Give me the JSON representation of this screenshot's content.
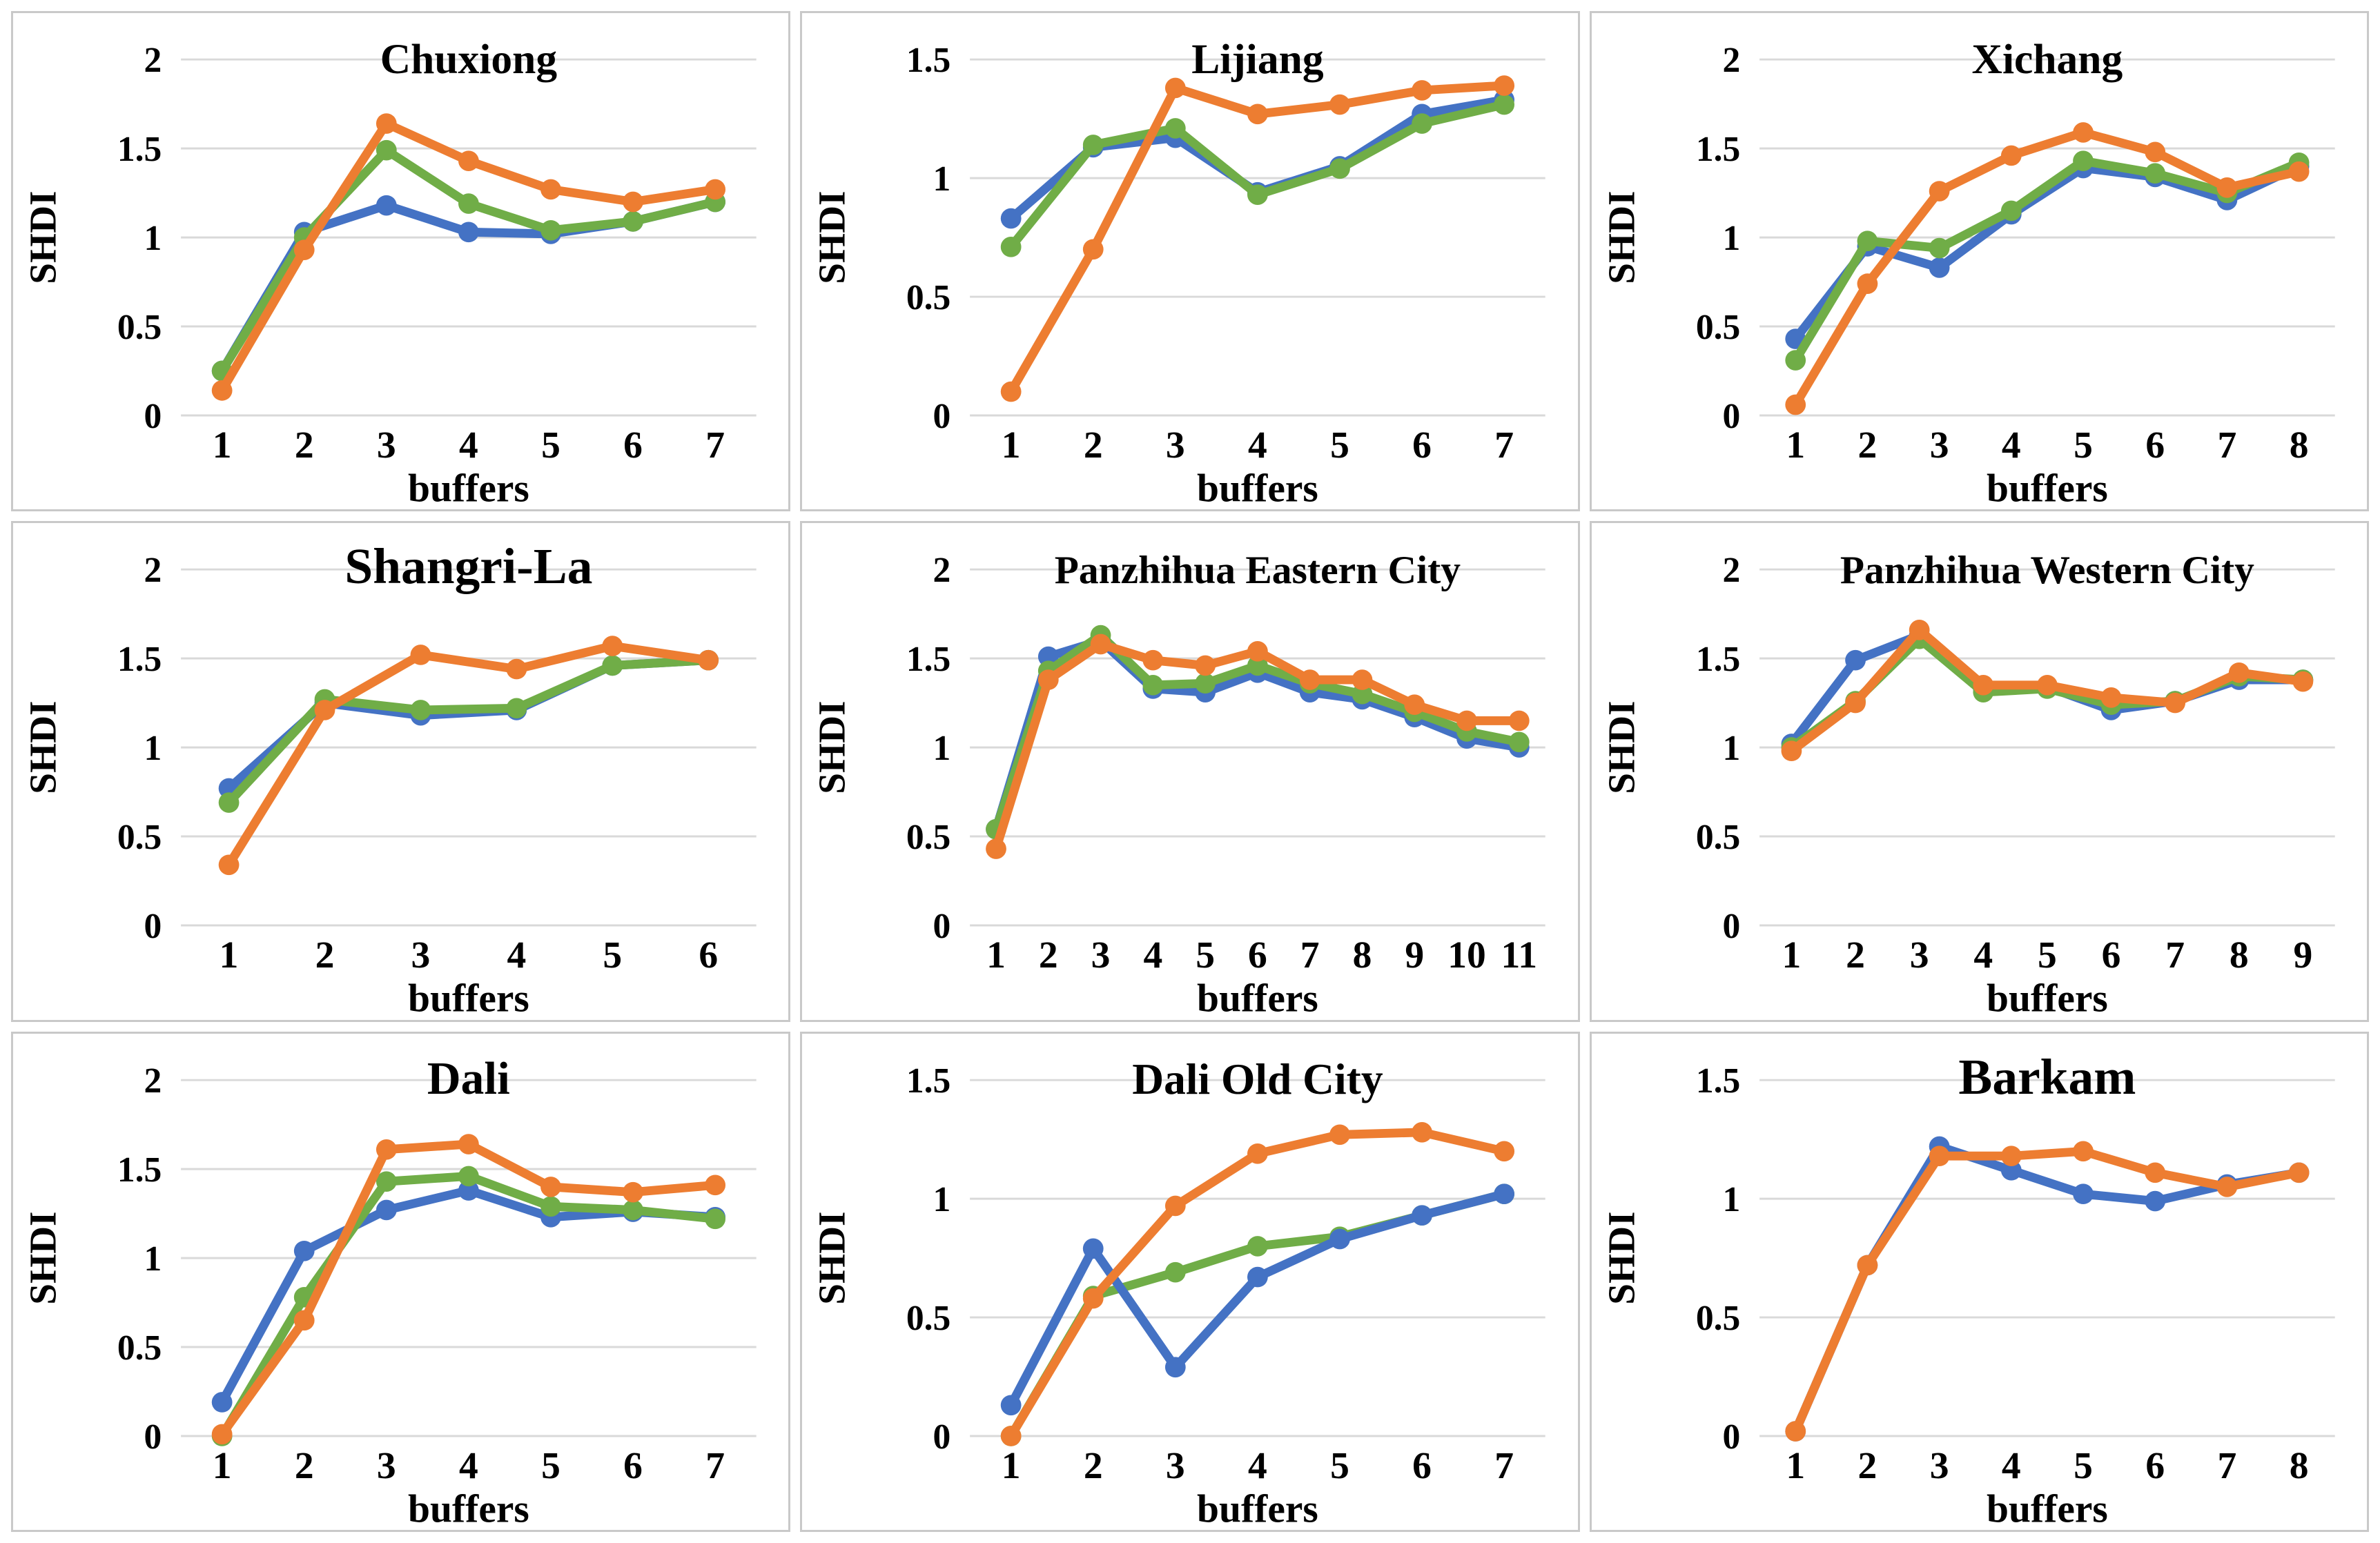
{
  "page": {
    "background": "#ffffff",
    "description": "3x3 grid of SHDI line charts for nine cities"
  },
  "colors": {
    "blue": "#4472C4",
    "green": "#70AD47",
    "orange": "#ED7D31",
    "gridline": "#D9D9D9",
    "panel_border": "#C9C9C9",
    "text": "#000000"
  },
  "chart_data": [
    {
      "type": "line",
      "title": "Chuxiong",
      "title_size": 62,
      "xlabel": "buffers",
      "ylabel": "SHDI",
      "ylim": [
        0,
        2
      ],
      "yticks": [
        "0",
        "0.5",
        "1",
        "1.5",
        "2"
      ],
      "grid": true,
      "legend": "none",
      "categories": [
        "1",
        "2",
        "3",
        "4",
        "5",
        "6",
        "7"
      ],
      "series": [
        {
          "name": "blue",
          "color_key": "blue",
          "values": [
            0.25,
            1.03,
            1.18,
            1.03,
            1.02,
            1.09,
            1.2
          ]
        },
        {
          "name": "green",
          "color_key": "green",
          "values": [
            0.25,
            1.0,
            1.49,
            1.19,
            1.04,
            1.09,
            1.2
          ]
        },
        {
          "name": "orange",
          "color_key": "orange",
          "values": [
            0.14,
            0.93,
            1.64,
            1.43,
            1.27,
            1.2,
            1.27
          ]
        }
      ]
    },
    {
      "type": "line",
      "title": "Lijiang",
      "title_size": 62,
      "xlabel": "buffers",
      "ylabel": "SHDI",
      "ylim": [
        0,
        1.5
      ],
      "yticks": [
        "0",
        "0.5",
        "1",
        "1.5"
      ],
      "grid": true,
      "legend": "none",
      "categories": [
        "1",
        "2",
        "3",
        "4",
        "5",
        "6",
        "7"
      ],
      "series": [
        {
          "name": "blue",
          "color_key": "blue",
          "values": [
            0.83,
            1.13,
            1.17,
            0.94,
            1.05,
            1.27,
            1.33
          ]
        },
        {
          "name": "green",
          "color_key": "green",
          "values": [
            0.71,
            1.14,
            1.21,
            0.93,
            1.04,
            1.23,
            1.31
          ]
        },
        {
          "name": "orange",
          "color_key": "orange",
          "values": [
            0.1,
            0.7,
            1.38,
            1.27,
            1.31,
            1.37,
            1.39
          ]
        }
      ]
    },
    {
      "type": "line",
      "title": "Xichang",
      "title_size": 62,
      "xlabel": "buffers",
      "ylabel": "SHDI",
      "ylim": [
        0,
        2
      ],
      "yticks": [
        "0",
        "0.5",
        "1",
        "1.5",
        "2"
      ],
      "grid": true,
      "legend": "none",
      "categories": [
        "1",
        "2",
        "3",
        "4",
        "5",
        "6",
        "7",
        "8"
      ],
      "series": [
        {
          "name": "blue",
          "color_key": "blue",
          "values": [
            0.43,
            0.95,
            0.83,
            1.13,
            1.39,
            1.34,
            1.21,
            1.4
          ]
        },
        {
          "name": "green",
          "color_key": "green",
          "values": [
            0.31,
            0.98,
            0.94,
            1.15,
            1.43,
            1.36,
            1.25,
            1.42
          ]
        },
        {
          "name": "orange",
          "color_key": "orange",
          "values": [
            0.06,
            0.74,
            1.26,
            1.46,
            1.59,
            1.48,
            1.28,
            1.37
          ]
        }
      ]
    },
    {
      "type": "line",
      "title": "Shangri-La",
      "title_size": 74,
      "xlabel": "buffers",
      "ylabel": "SHDI",
      "ylim": [
        0,
        2
      ],
      "yticks": [
        "0",
        "0.5",
        "1",
        "1.5",
        "2"
      ],
      "grid": true,
      "legend": "none",
      "categories": [
        "1",
        "2",
        "3",
        "4",
        "5",
        "6"
      ],
      "series": [
        {
          "name": "blue",
          "color_key": "blue",
          "values": [
            0.77,
            1.25,
            1.18,
            1.21,
            1.46,
            1.49
          ]
        },
        {
          "name": "green",
          "color_key": "green",
          "values": [
            0.69,
            1.27,
            1.21,
            1.22,
            1.46,
            1.49
          ]
        },
        {
          "name": "orange",
          "color_key": "orange",
          "values": [
            0.34,
            1.21,
            1.52,
            1.44,
            1.57,
            1.49
          ]
        }
      ]
    },
    {
      "type": "line",
      "title": "Panzhihua Eastern City",
      "title_size": 58,
      "xlabel": "buffers",
      "ylabel": "SHDI",
      "ylim": [
        0,
        2
      ],
      "yticks": [
        "0",
        "0.5",
        "1",
        "1.5",
        "2"
      ],
      "grid": true,
      "legend": "none",
      "categories": [
        "1",
        "2",
        "3",
        "4",
        "5",
        "6",
        "7",
        "8",
        "9",
        "10",
        "11"
      ],
      "series": [
        {
          "name": "blue",
          "color_key": "blue",
          "values": [
            0.54,
            1.51,
            1.6,
            1.33,
            1.31,
            1.42,
            1.31,
            1.27,
            1.17,
            1.05,
            1.0
          ]
        },
        {
          "name": "green",
          "color_key": "green",
          "values": [
            0.54,
            1.43,
            1.63,
            1.35,
            1.36,
            1.46,
            1.36,
            1.3,
            1.2,
            1.09,
            1.03
          ]
        },
        {
          "name": "orange",
          "color_key": "orange",
          "values": [
            0.43,
            1.38,
            1.58,
            1.49,
            1.46,
            1.54,
            1.38,
            1.38,
            1.24,
            1.15,
            1.15
          ]
        }
      ]
    },
    {
      "type": "line",
      "title": "Panzhihua Western City",
      "title_size": 58,
      "xlabel": "buffers",
      "ylabel": "SHDI",
      "ylim": [
        0,
        2
      ],
      "yticks": [
        "0",
        "0.5",
        "1",
        "1.5",
        "2"
      ],
      "grid": true,
      "legend": "none",
      "categories": [
        "1",
        "2",
        "3",
        "4",
        "5",
        "6",
        "7",
        "8",
        "9"
      ],
      "series": [
        {
          "name": "blue",
          "color_key": "blue",
          "values": [
            1.02,
            1.49,
            1.63,
            1.33,
            1.34,
            1.21,
            1.26,
            1.38,
            1.38
          ]
        },
        {
          "name": "green",
          "color_key": "green",
          "values": [
            1.0,
            1.26,
            1.61,
            1.31,
            1.33,
            1.24,
            1.26,
            1.4,
            1.38
          ]
        },
        {
          "name": "orange",
          "color_key": "orange",
          "values": [
            0.98,
            1.25,
            1.66,
            1.35,
            1.35,
            1.28,
            1.25,
            1.42,
            1.37
          ]
        }
      ]
    },
    {
      "type": "line",
      "title": "Dali",
      "title_size": 68,
      "xlabel": "buffers",
      "ylabel": "SHDI",
      "ylim": [
        0,
        2
      ],
      "yticks": [
        "0",
        "0.5",
        "1",
        "1.5",
        "2"
      ],
      "grid": true,
      "legend": "none",
      "categories": [
        "1",
        "2",
        "3",
        "4",
        "5",
        "6",
        "7"
      ],
      "series": [
        {
          "name": "blue",
          "color_key": "blue",
          "values": [
            0.19,
            1.04,
            1.27,
            1.38,
            1.23,
            1.26,
            1.23
          ]
        },
        {
          "name": "green",
          "color_key": "green",
          "values": [
            0.0,
            0.78,
            1.43,
            1.46,
            1.29,
            1.27,
            1.22
          ]
        },
        {
          "name": "orange",
          "color_key": "orange",
          "values": [
            0.01,
            0.65,
            1.61,
            1.64,
            1.4,
            1.37,
            1.41
          ]
        }
      ]
    },
    {
      "type": "line",
      "title": "Dali Old City",
      "title_size": 64,
      "xlabel": "buffers",
      "ylabel": "SHDI",
      "ylim": [
        0,
        1.5
      ],
      "yticks": [
        "0",
        "0.5",
        "1",
        "1.5"
      ],
      "grid": true,
      "legend": "none",
      "categories": [
        "1",
        "2",
        "3",
        "4",
        "5",
        "6",
        "7"
      ],
      "series": [
        {
          "name": "green",
          "color_key": "green",
          "values": [
            0.0,
            0.59,
            0.69,
            0.8,
            0.84,
            0.93,
            1.02
          ]
        },
        {
          "name": "blue",
          "color_key": "blue",
          "values": [
            0.13,
            0.79,
            0.29,
            0.67,
            0.83,
            0.93,
            1.02
          ]
        },
        {
          "name": "orange",
          "color_key": "orange",
          "values": [
            0.0,
            0.58,
            0.97,
            1.19,
            1.27,
            1.28,
            1.2
          ]
        }
      ]
    },
    {
      "type": "line",
      "title": "Barkam",
      "title_size": 74,
      "xlabel": "buffers",
      "ylabel": "SHDI",
      "ylim": [
        0,
        1.5
      ],
      "yticks": [
        "0",
        "0.5",
        "1",
        "1.5"
      ],
      "grid": true,
      "legend": "none",
      "categories": [
        "1",
        "2",
        "3",
        "4",
        "5",
        "6",
        "7",
        "8"
      ],
      "series": [
        {
          "name": "blue",
          "color_key": "blue",
          "values": [
            0.02,
            0.72,
            1.22,
            1.12,
            1.02,
            0.99,
            1.06,
            1.11
          ]
        },
        {
          "name": "orange",
          "color_key": "orange",
          "values": [
            0.02,
            0.72,
            1.18,
            1.18,
            1.2,
            1.11,
            1.05,
            1.11
          ]
        }
      ]
    }
  ]
}
